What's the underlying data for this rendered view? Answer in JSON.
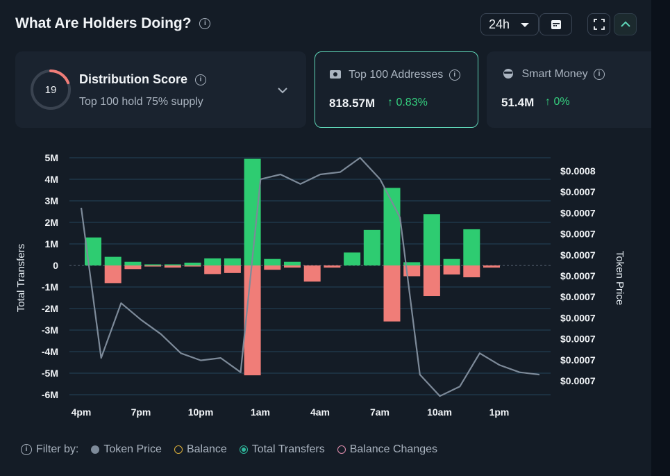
{
  "header": {
    "title": "What Are Holders Doing?",
    "timeframe": "24h"
  },
  "cards": {
    "distribution": {
      "score": "19",
      "title": "Distribution Score",
      "subtitle": "Top 100 hold 75% supply",
      "score_fraction": 0.19
    },
    "top100": {
      "title": "Top 100 Addresses",
      "value": "818.57M",
      "change": "0.83%"
    },
    "smart_money": {
      "title": "Smart Money",
      "value": "51.4M",
      "change": "0%"
    }
  },
  "legend": {
    "filter_label": "Filter by:",
    "items": [
      "Token Price",
      "Balance",
      "Total Transfers",
      "Balance Changes"
    ]
  },
  "colors": {
    "positive": "#2ecc71",
    "negative": "#f07d78",
    "price_line": "#7d8a99",
    "accent": "#5fd6b8"
  },
  "chart_data": {
    "type": "bar",
    "x_ticks": [
      "4pm",
      "7pm",
      "10pm",
      "1am",
      "4am",
      "7am",
      "10am",
      "1pm"
    ],
    "left_ticks": [
      "5M",
      "4M",
      "3M",
      "2M",
      "1M",
      "0",
      "-1M",
      "-2M",
      "-3M",
      "-4M",
      "-5M",
      "-6M"
    ],
    "right_ticks": [
      "$0.0008",
      "$0.0007",
      "$0.0007",
      "$0.0007",
      "$0.0007",
      "$0.0007",
      "$0.0007",
      "$0.0007",
      "$0.0007",
      "$0.0007",
      "$0.0007"
    ],
    "ylabel_left": "Total Transfers",
    "ylabel_right": "Token Price",
    "ylim": [
      -6,
      5
    ],
    "inflow_millions": [
      1.3,
      0.4,
      0.17,
      0.05,
      0.05,
      0.13,
      0.33,
      0.33,
      4.95,
      0.3,
      0.17,
      0,
      0,
      0.6,
      1.65,
      3.6,
      0.15,
      2.38,
      0.3,
      1.68,
      0
    ],
    "outflow_millions": [
      0,
      -0.82,
      -0.17,
      -0.05,
      -0.1,
      -0.05,
      -0.4,
      -0.35,
      -5.1,
      -0.2,
      -0.1,
      -0.75,
      -0.1,
      0,
      0,
      -2.6,
      -0.5,
      -1.42,
      -0.42,
      -0.55,
      -0.1
    ],
    "price_series_relative": [
      0.79,
      0.16,
      0.39,
      0.32,
      0.26,
      0.18,
      0.15,
      0.16,
      0.1,
      0.91,
      0.93,
      0.89,
      0.93,
      0.94,
      1.0,
      0.91,
      0.75,
      0.09,
      0.0,
      0.04,
      0.18,
      0.13,
      0.1,
      0.09
    ]
  }
}
